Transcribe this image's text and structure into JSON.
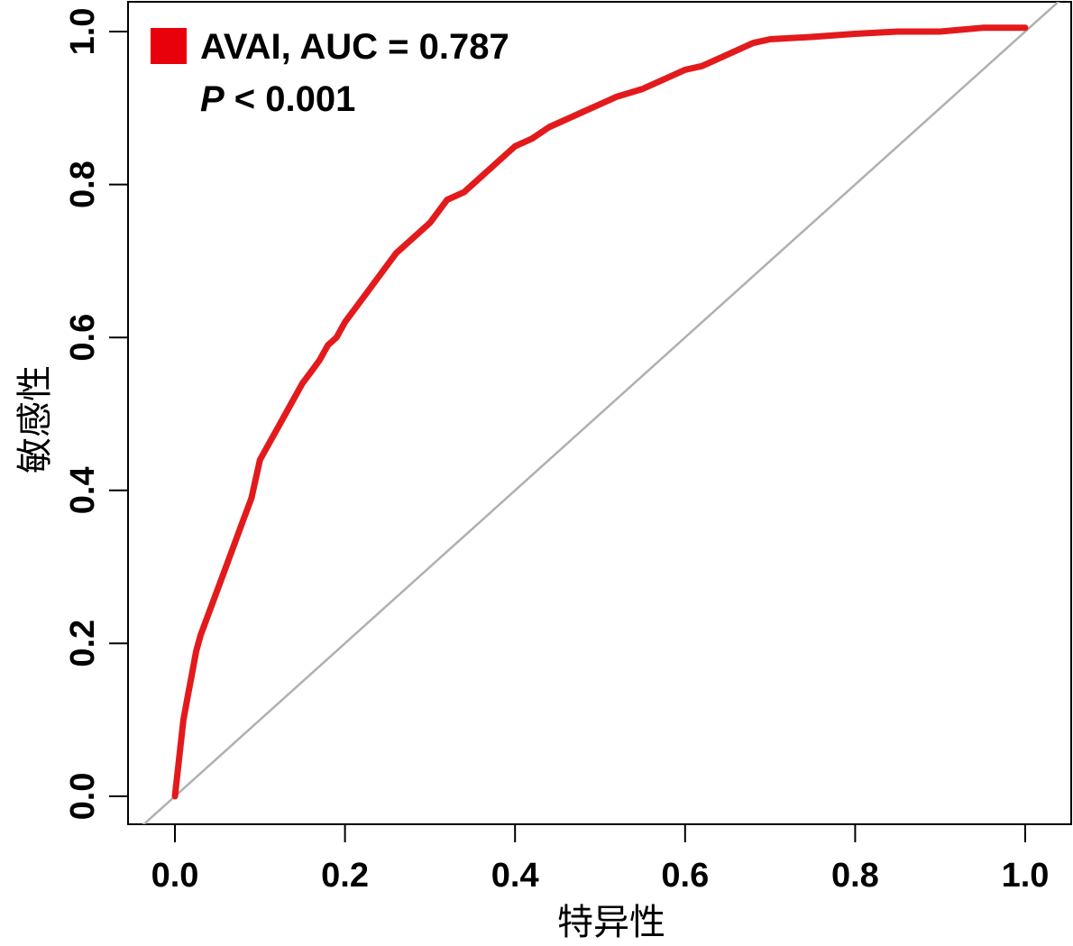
{
  "chart_data": {
    "type": "line",
    "title": "",
    "xlabel": "特异性",
    "ylabel": "敏感性",
    "xlim": [
      0,
      1
    ],
    "ylim": [
      0,
      1
    ],
    "x_ticks": [
      "0.0",
      "0.2",
      "0.4",
      "0.6",
      "0.8",
      "1.0"
    ],
    "y_ticks": [
      "0.0",
      "0.2",
      "0.4",
      "0.6",
      "0.8",
      "1.0"
    ],
    "grid": false,
    "legend_position": "top-left",
    "reference_line": {
      "from": [
        0,
        0
      ],
      "to": [
        1,
        1
      ],
      "color": "#b0b0b0"
    },
    "series": [
      {
        "name": "AVAI, AUC = 0.787",
        "color": "#e31a1c",
        "x": [
          0.0,
          0.005,
          0.01,
          0.015,
          0.02,
          0.025,
          0.03,
          0.04,
          0.05,
          0.06,
          0.07,
          0.08,
          0.09,
          0.1,
          0.11,
          0.12,
          0.13,
          0.14,
          0.15,
          0.16,
          0.17,
          0.18,
          0.19,
          0.2,
          0.22,
          0.24,
          0.26,
          0.28,
          0.3,
          0.32,
          0.34,
          0.36,
          0.38,
          0.4,
          0.42,
          0.44,
          0.46,
          0.48,
          0.5,
          0.52,
          0.55,
          0.58,
          0.6,
          0.62,
          0.65,
          0.68,
          0.7,
          0.75,
          0.8,
          0.85,
          0.9,
          0.95,
          1.0
        ],
        "y": [
          0.0,
          0.05,
          0.1,
          0.13,
          0.16,
          0.19,
          0.21,
          0.24,
          0.27,
          0.3,
          0.33,
          0.36,
          0.39,
          0.44,
          0.46,
          0.48,
          0.5,
          0.52,
          0.54,
          0.555,
          0.57,
          0.59,
          0.6,
          0.62,
          0.65,
          0.68,
          0.71,
          0.73,
          0.75,
          0.78,
          0.79,
          0.81,
          0.83,
          0.85,
          0.86,
          0.875,
          0.885,
          0.895,
          0.905,
          0.915,
          0.925,
          0.94,
          0.95,
          0.955,
          0.97,
          0.985,
          0.99,
          0.993,
          0.997,
          1.0,
          1.0,
          1.005,
          1.005
        ]
      }
    ],
    "annotations": [
      "AVAI, AUC = 0.787",
      "P",
      " < 0.001"
    ]
  }
}
